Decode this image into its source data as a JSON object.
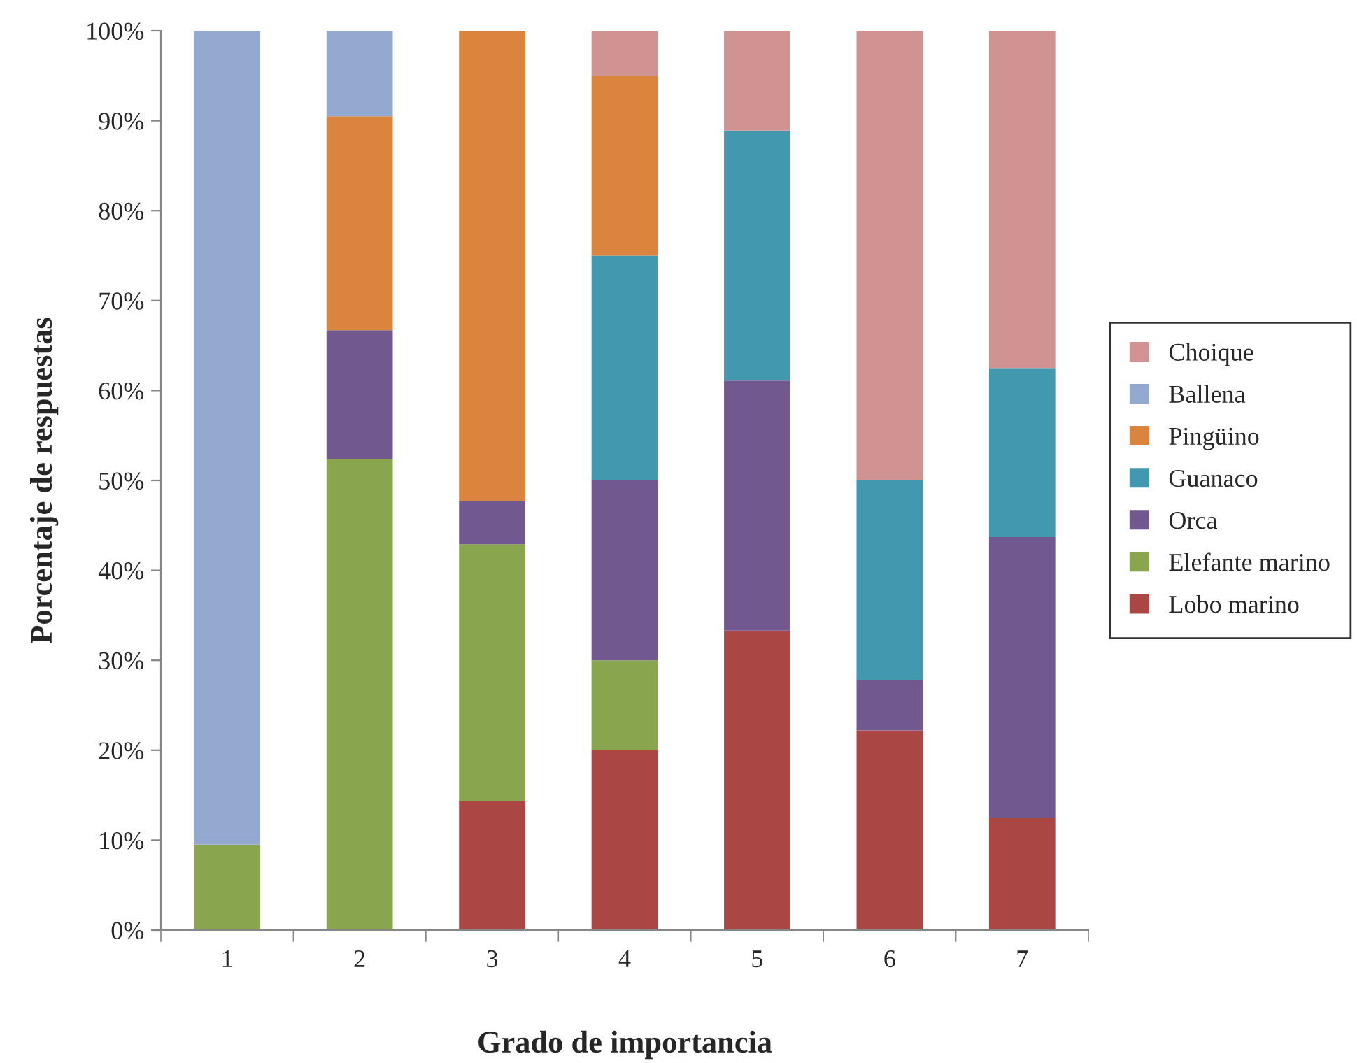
{
  "chart_data": {
    "type": "bar",
    "stacked": true,
    "xlabel": "Grado de importancia",
    "ylabel": "Porcentaje de respuestas",
    "categories": [
      "1",
      "2",
      "3",
      "4",
      "5",
      "6",
      "7"
    ],
    "series": [
      {
        "name": "Lobo marino",
        "color": "#aa4643",
        "values": [
          0,
          0,
          14.3,
          20,
          33.3,
          22.2,
          12.5
        ]
      },
      {
        "name": "Elefante marino",
        "color": "#89a54e",
        "values": [
          9.5,
          52.4,
          28.6,
          10,
          0,
          0,
          0
        ]
      },
      {
        "name": "Orca",
        "color": "#71588f",
        "values": [
          0,
          14.3,
          4.8,
          20,
          27.8,
          5.6,
          31.2
        ]
      },
      {
        "name": "Guanaco",
        "color": "#4198af",
        "values": [
          0,
          0,
          0,
          25,
          27.8,
          22.2,
          18.8
        ]
      },
      {
        "name": "Pingüino",
        "color": "#db843d",
        "values": [
          0,
          23.8,
          52.4,
          20,
          0,
          0,
          0
        ]
      },
      {
        "name": "Ballena",
        "color": "#93a9cf",
        "values": [
          90.5,
          9.5,
          0,
          0,
          0,
          0,
          0
        ]
      },
      {
        "name": "Choique",
        "color": "#d19392",
        "values": [
          0,
          0,
          0,
          5,
          11.1,
          50,
          37.5
        ]
      }
    ],
    "ylim": [
      0,
      100
    ],
    "yticks": [
      {
        "value": 0,
        "label": "0%"
      },
      {
        "value": 10,
        "label": "10%"
      },
      {
        "value": 20,
        "label": "20%"
      },
      {
        "value": 30,
        "label": "30%"
      },
      {
        "value": 40,
        "label": "40%"
      },
      {
        "value": 50,
        "label": "50%"
      },
      {
        "value": 60,
        "label": "60%"
      },
      {
        "value": 70,
        "label": "70%"
      },
      {
        "value": 80,
        "label": "80%"
      },
      {
        "value": 90,
        "label": "90%"
      },
      {
        "value": 100,
        "label": "100%"
      }
    ],
    "legend": "right",
    "grid": false
  }
}
